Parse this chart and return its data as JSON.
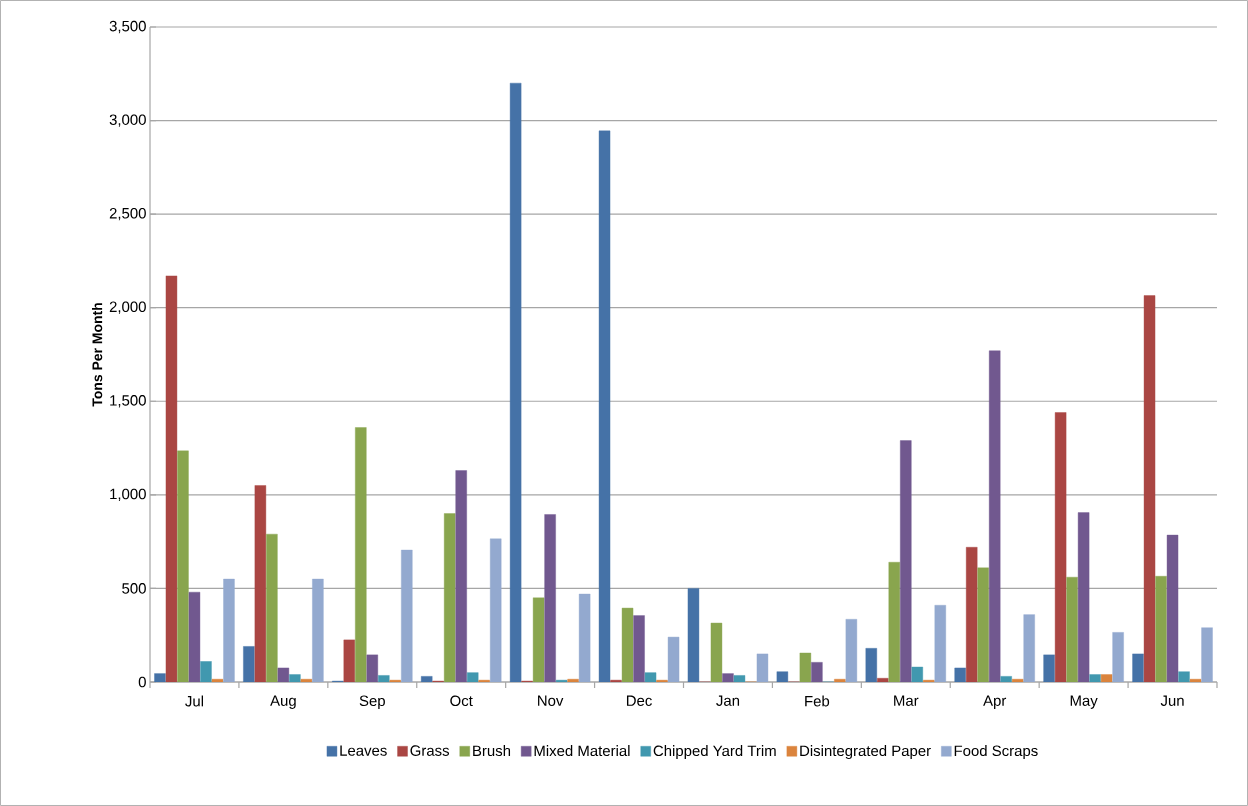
{
  "chart_data": {
    "type": "bar",
    "ylabel": "Tons Per Month",
    "categories": [
      "Jul",
      "Aug",
      "Sep",
      "Oct",
      "Nov",
      "Dec",
      "Jan",
      "Feb",
      "Mar",
      "Apr",
      "May",
      "Jun"
    ],
    "series": [
      {
        "name": "Leaves",
        "color": "#4572a7",
        "values": [
          45,
          190,
          5,
          30,
          3200,
          2945,
          500,
          55,
          180,
          75,
          145,
          150
        ]
      },
      {
        "name": "Grass",
        "color": "#aa4643",
        "values": [
          2170,
          1050,
          225,
          5,
          5,
          10,
          0,
          0,
          20,
          720,
          1440,
          2065
        ]
      },
      {
        "name": "Brush",
        "color": "#89a54e",
        "values": [
          1235,
          790,
          1360,
          900,
          450,
          395,
          315,
          155,
          640,
          610,
          560,
          565
        ]
      },
      {
        "name": "Mixed Material",
        "color": "#71588f",
        "values": [
          480,
          75,
          145,
          1130,
          895,
          355,
          45,
          105,
          1290,
          1770,
          905,
          785
        ]
      },
      {
        "name": "Chipped Yard Trim",
        "color": "#4198af",
        "values": [
          110,
          40,
          35,
          50,
          10,
          50,
          35,
          0,
          80,
          30,
          40,
          55
        ]
      },
      {
        "name": "Disintegrated Paper",
        "color": "#db843d",
        "values": [
          15,
          15,
          10,
          10,
          15,
          10,
          0,
          15,
          10,
          15,
          40,
          15
        ]
      },
      {
        "name": "Food Scraps",
        "color": "#93a9cf",
        "values": [
          550,
          550,
          705,
          765,
          470,
          240,
          150,
          335,
          410,
          360,
          265,
          290
        ]
      }
    ],
    "ylim": [
      0,
      3500
    ],
    "yticks": [
      0,
      {
        "value": 500,
        "label": "500"
      },
      {
        "value": 1000,
        "label": "1,000"
      },
      {
        "value": 1500,
        "label": "1,500"
      },
      {
        "value": 2000,
        "label": "2,000"
      },
      {
        "value": 2500,
        "label": "2,500"
      },
      {
        "value": 3000,
        "label": "3,000"
      },
      {
        "value": 3500,
        "label": "3,500"
      }
    ],
    "grid": "y",
    "legend": "bottom"
  }
}
